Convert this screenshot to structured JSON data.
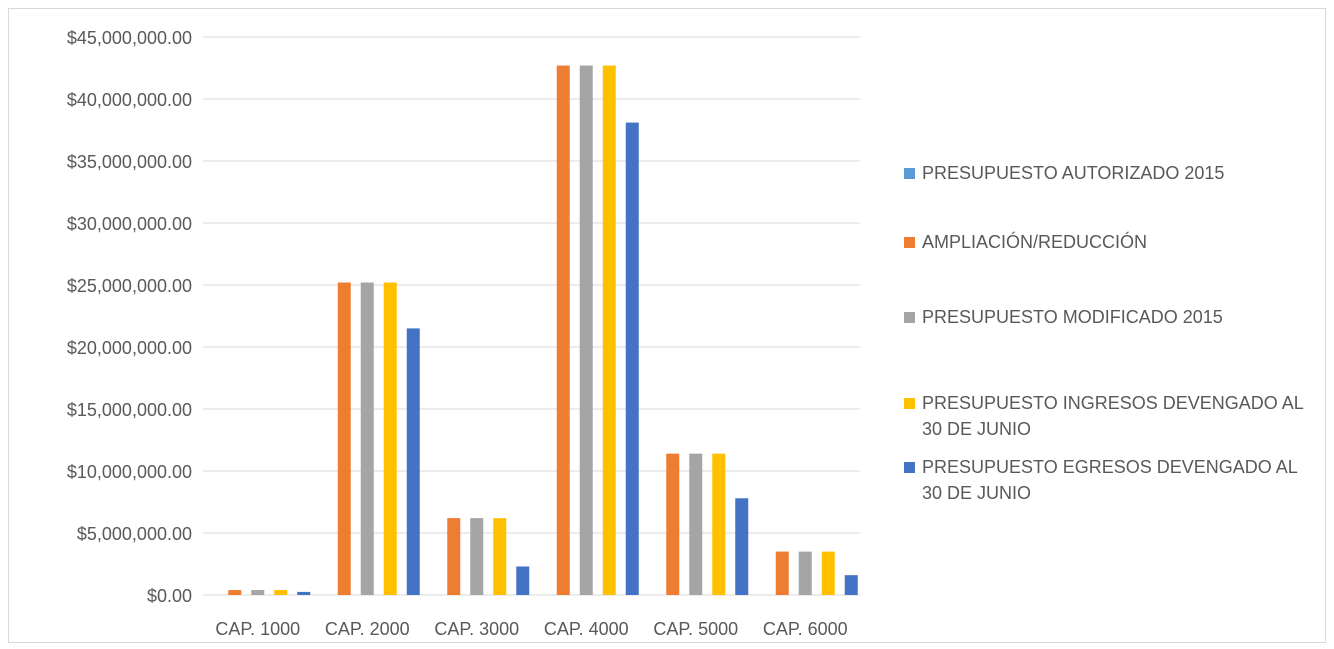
{
  "chart_data": {
    "type": "bar",
    "categories": [
      "CAP. 1000",
      "CAP. 2000",
      "CAP. 3000",
      "CAP. 4000",
      "CAP. 5000",
      "CAP. 6000"
    ],
    "series": [
      {
        "name": "PRESUPUESTO AUTORIZADO 2015",
        "color": "#5B9BD5",
        "values": [
          0,
          0,
          0,
          0,
          0,
          0
        ]
      },
      {
        "name": "AMPLIACIÓN/REDUCCIÓN",
        "color": "#ED7D31",
        "values": [
          400000,
          25200000,
          6200000,
          42700000,
          11400000,
          3500000
        ]
      },
      {
        "name": "PRESUPUESTO MODIFICADO 2015",
        "color": "#A5A5A5",
        "values": [
          400000,
          25200000,
          6200000,
          42700000,
          11400000,
          3500000
        ]
      },
      {
        "name": "PRESUPUESTO INGRESOS DEVENGADO AL 30 DE JUNIO",
        "color": "#FFC000",
        "values": [
          400000,
          25200000,
          6200000,
          42700000,
          11400000,
          3500000
        ]
      },
      {
        "name": "PRESUPUESTO EGRESOS DEVENGADO AL 30 DE JUNIO",
        "color": "#4472C4",
        "values": [
          250000,
          21500000,
          2300000,
          38100000,
          7800000,
          1600000
        ]
      }
    ],
    "ylim": [
      0,
      45000000
    ],
    "yticks": [
      0,
      5000000,
      10000000,
      15000000,
      20000000,
      25000000,
      30000000,
      35000000,
      40000000,
      45000000
    ],
    "ytick_labels": [
      "$0.00",
      "$5,000,000.00",
      "$10,000,000.00",
      "$15,000,000.00",
      "$20,000,000.00",
      "$25,000,000.00",
      "$30,000,000.00",
      "$35,000,000.00",
      "$40,000,000.00",
      "$45,000,000.00"
    ],
    "grid": true,
    "legend_position": "right"
  }
}
